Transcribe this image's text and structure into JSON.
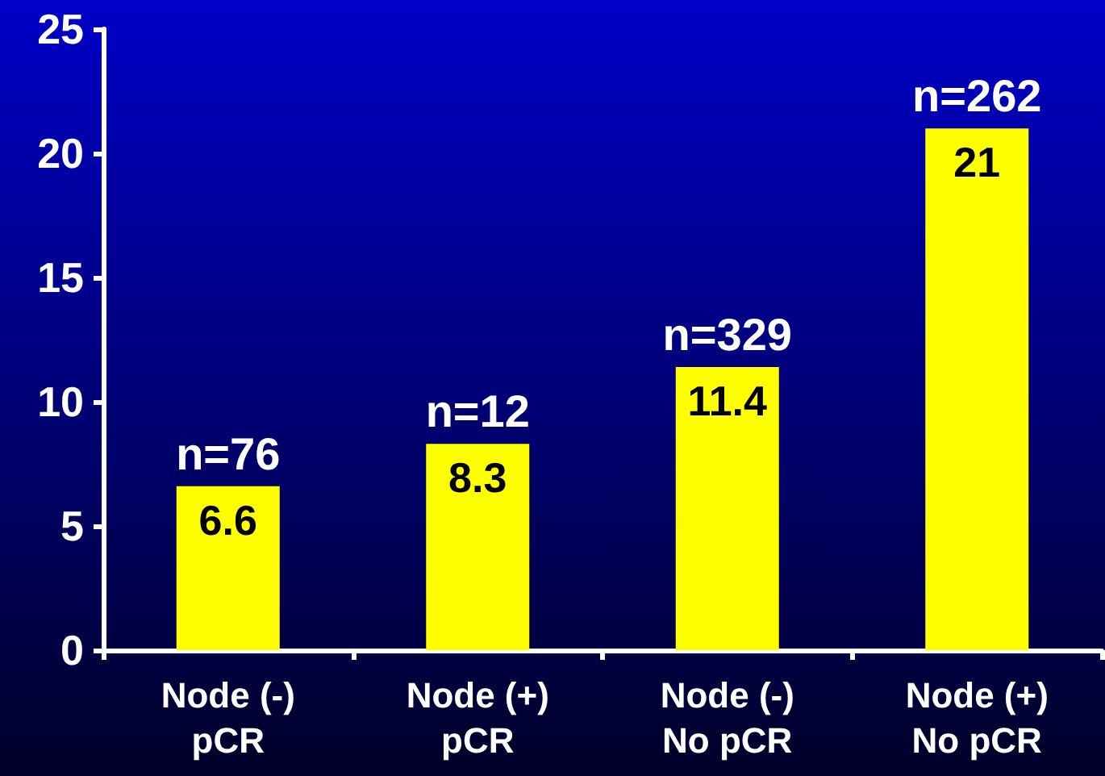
{
  "chart_data": {
    "type": "bar",
    "categories": [
      "Node (-)\npCR",
      "Node (+)\npCR",
      "Node (-)\nNo pCR",
      "Node (+)\nNo pCR"
    ],
    "values": [
      6.6,
      8.3,
      11.4,
      21
    ],
    "color": "#ffff00",
    "data_labels": true,
    "ylim": [
      0,
      25
    ],
    "yticks": [
      0,
      5,
      10,
      15,
      20,
      25
    ],
    "grid": false,
    "annotations": [
      {
        "text": "n=76",
        "x": "Node (-)\npCR",
        "y": 6.6
      },
      {
        "text": "n=12",
        "x": "Node (+)\npCR",
        "y": 8.3
      },
      {
        "text": "n=329",
        "x": "Node (-)\nNo pCR",
        "y": 11.4
      },
      {
        "text": "n=262",
        "x": "Node (+)\nNo pCR",
        "y": 21
      }
    ]
  }
}
